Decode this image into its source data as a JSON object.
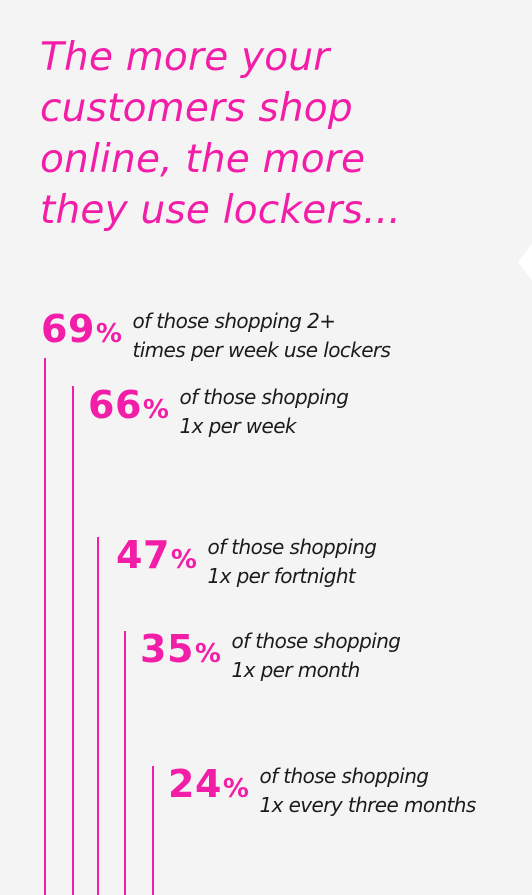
{
  "title_lines": [
    "The more your",
    "customers shop",
    "online, the more",
    "they use lockers..."
  ],
  "accent_color": "#f21ea8",
  "stats": [
    {
      "value": "69",
      "unit": "%",
      "line1": "of those shopping 2+",
      "line2": "times per week use lockers"
    },
    {
      "value": "66",
      "unit": "%",
      "line1": "of those shopping",
      "line2": "1x per week"
    },
    {
      "value": "47",
      "unit": "%",
      "line1": "of those shopping",
      "line2": "1x per fortnight"
    },
    {
      "value": "35",
      "unit": "%",
      "line1": "of those shopping",
      "line2": "1x per month"
    },
    {
      "value": "24",
      "unit": "%",
      "line1": "of those shopping",
      "line2": "1x every three months"
    }
  ]
}
